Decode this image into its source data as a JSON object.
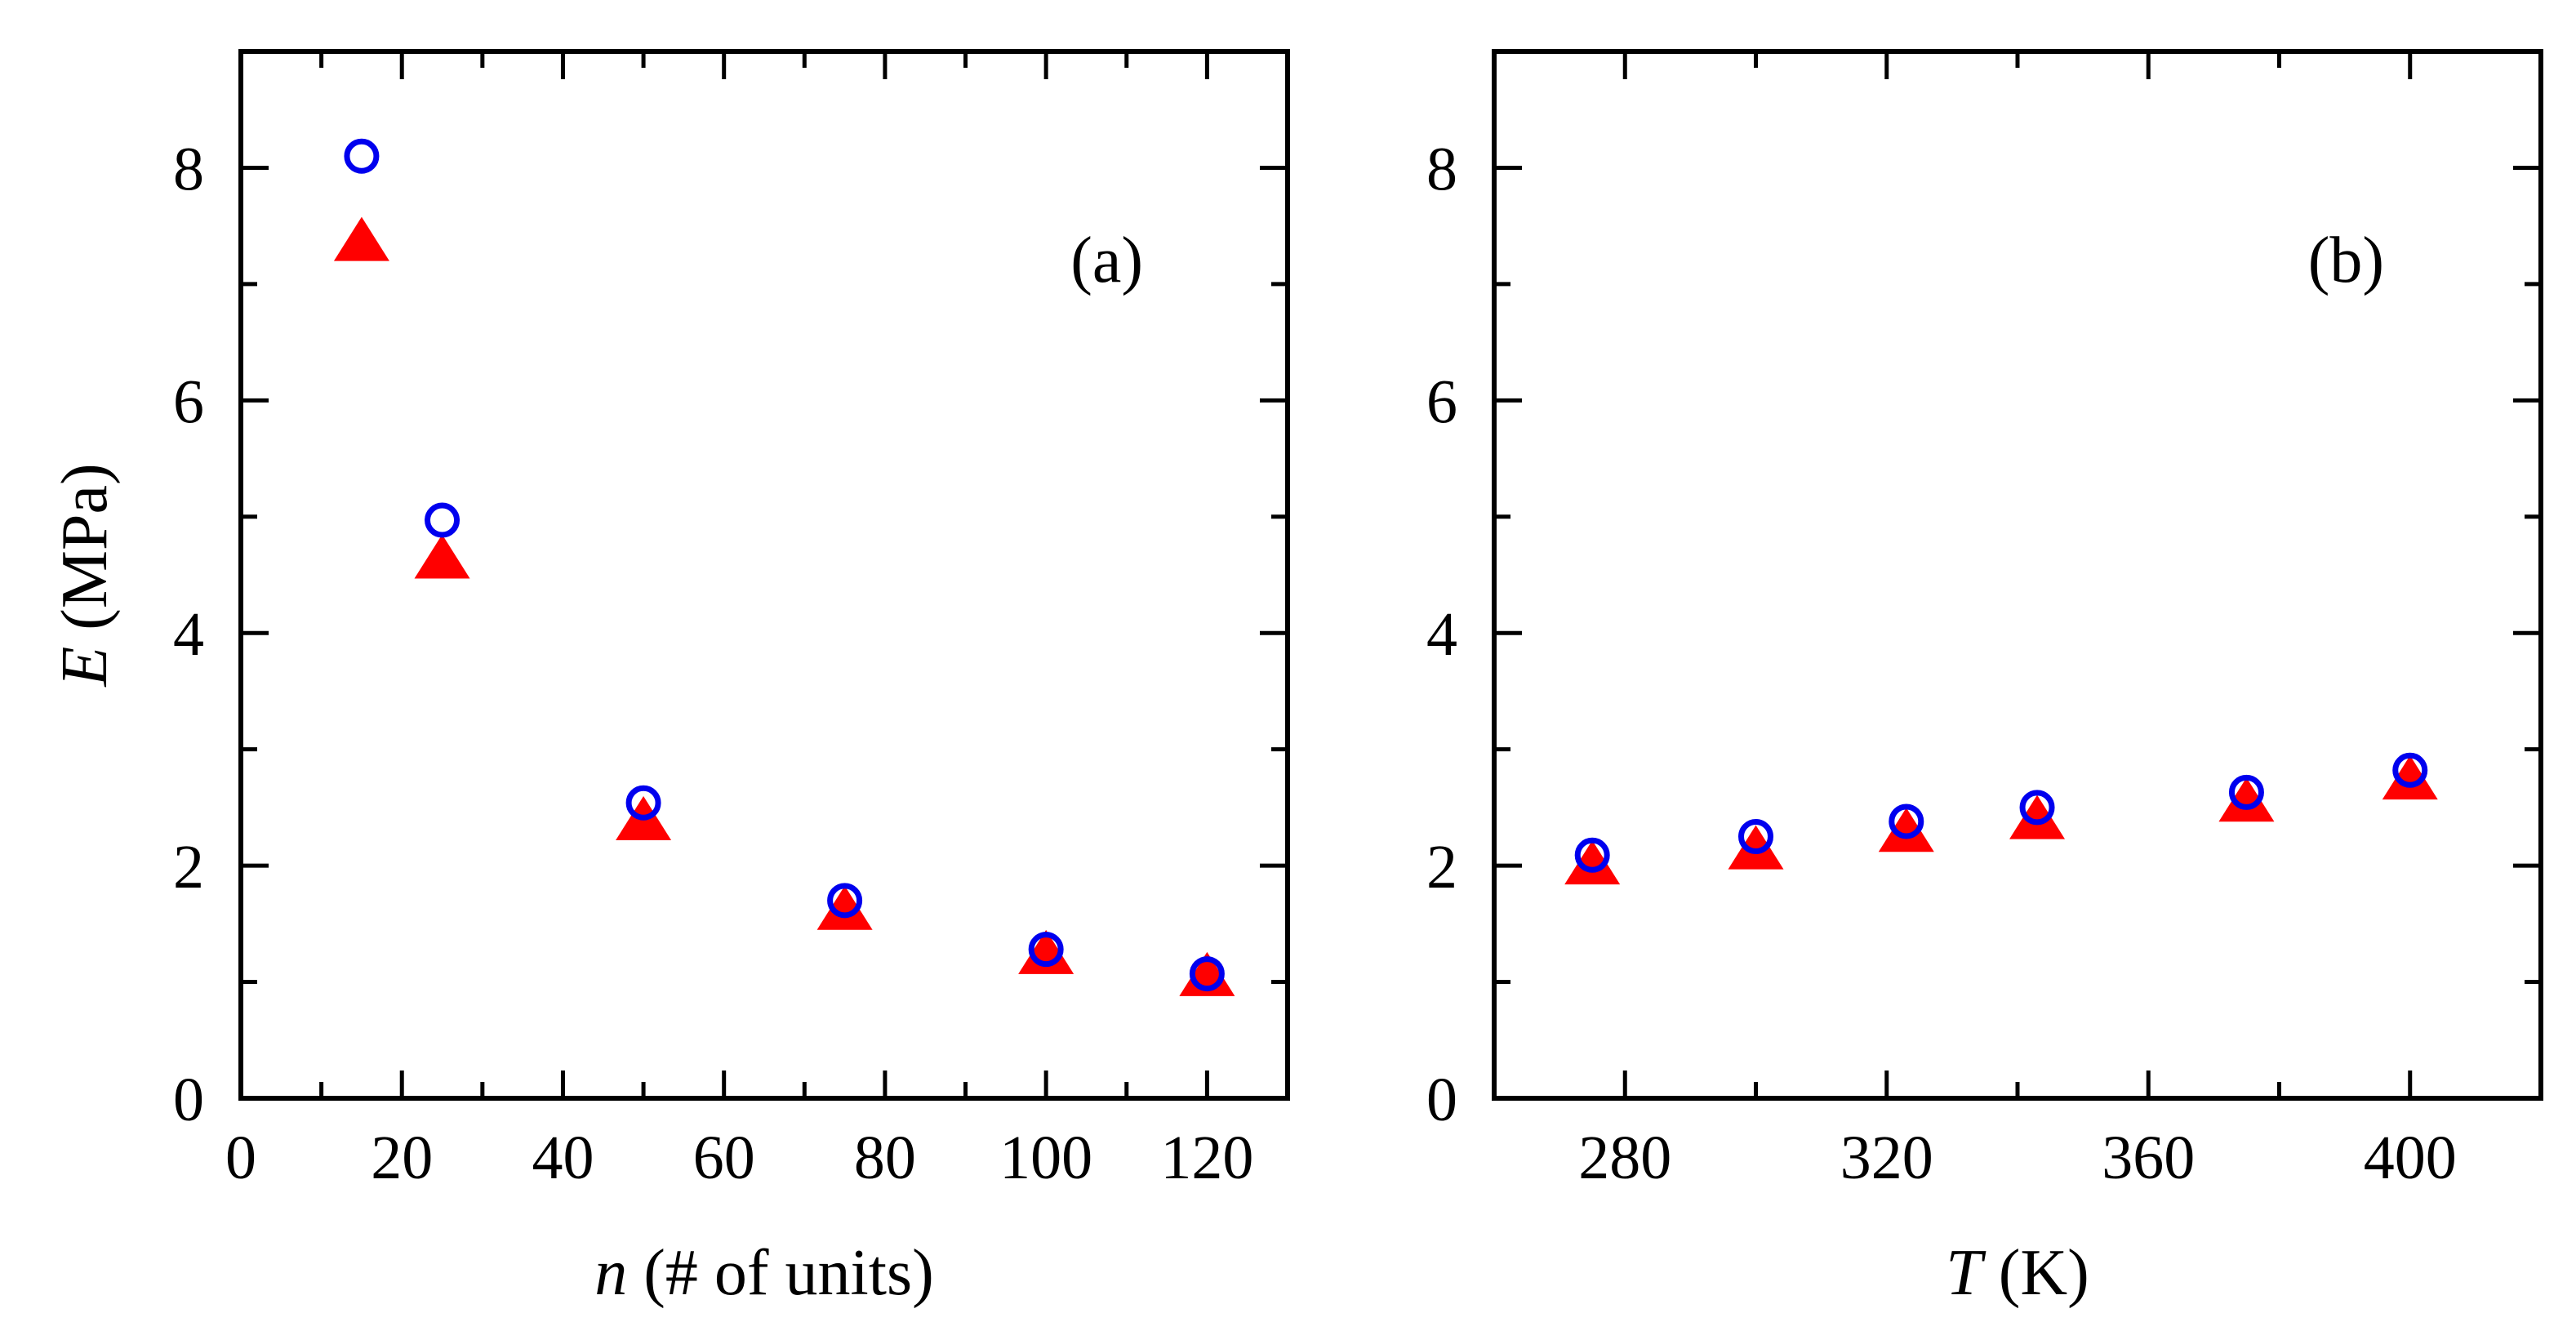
{
  "colors": {
    "axis": "#000000",
    "open_circle_series": "#0000ee",
    "triangle_series": "#ff0000",
    "background": "#ffffff"
  },
  "chart_data": [
    {
      "type": "scatter",
      "panel_label": "(a)",
      "xlabel_italic": "n",
      "xlabel_rest": " (# of units)",
      "ylabel_italic": "E",
      "ylabel_rest": " (MPa)",
      "xlim": [
        0,
        130
      ],
      "ylim": [
        0,
        9
      ],
      "x_ticks": [
        0,
        20,
        40,
        60,
        80,
        100,
        120
      ],
      "x_minor_ticks": [
        10,
        30,
        50,
        70,
        90,
        110
      ],
      "y_ticks": [
        0,
        2,
        4,
        6,
        8
      ],
      "y_minor_ticks": [
        1,
        3,
        5,
        7
      ],
      "x_tick_labels": [
        "0",
        "20",
        "40",
        "60",
        "80",
        "100",
        "120"
      ],
      "y_tick_labels": [
        "0",
        "2",
        "4",
        "6",
        "8"
      ],
      "series": [
        {
          "marker": "open-circle",
          "x": [
            15,
            25,
            50,
            75,
            100,
            120
          ],
          "y": [
            8.1,
            4.97,
            2.54,
            1.7,
            1.28,
            1.07
          ]
        },
        {
          "marker": "filled-triangle",
          "x": [
            15,
            25,
            50,
            75,
            100,
            120
          ],
          "y": [
            7.35,
            4.62,
            2.37,
            1.6,
            1.22,
            1.03
          ]
        }
      ]
    },
    {
      "type": "scatter",
      "panel_label": "(b)",
      "xlabel_italic": "T",
      "xlabel_rest": " (K)",
      "ylabel_italic": "",
      "ylabel_rest": "",
      "xlim": [
        260,
        420
      ],
      "ylim": [
        0,
        9
      ],
      "x_ticks": [
        280,
        320,
        360,
        400
      ],
      "x_minor_ticks": [
        300,
        340,
        380
      ],
      "y_ticks": [
        0,
        2,
        4,
        6,
        8
      ],
      "y_minor_ticks": [
        1,
        3,
        5,
        7
      ],
      "x_tick_labels": [
        "280",
        "320",
        "360",
        "400"
      ],
      "y_tick_labels": [
        "0",
        "2",
        "4",
        "6",
        "8"
      ],
      "series": [
        {
          "marker": "open-circle",
          "x": [
            275,
            300,
            323,
            343,
            375,
            400
          ],
          "y": [
            2.09,
            2.25,
            2.38,
            2.5,
            2.63,
            2.82
          ]
        },
        {
          "marker": "filled-triangle",
          "x": [
            275,
            300,
            323,
            343,
            375,
            400
          ],
          "y": [
            1.99,
            2.12,
            2.27,
            2.38,
            2.53,
            2.72
          ]
        }
      ]
    }
  ]
}
